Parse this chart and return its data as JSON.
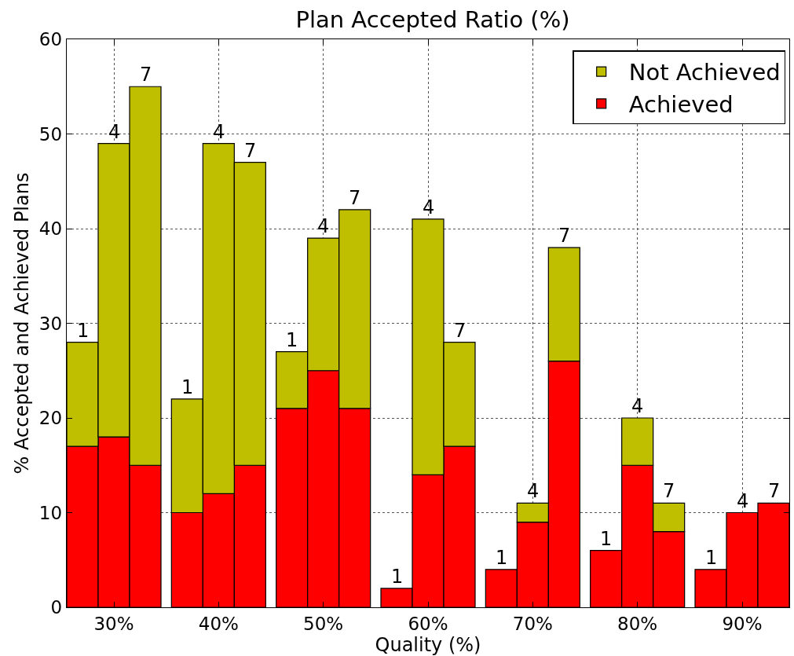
{
  "chart_data": {
    "type": "bar",
    "title": "Plan Accepted Ratio (%)",
    "xlabel": "Quality (%)",
    "ylabel": "% Accepted and Achieved Plans",
    "stacked": true,
    "x": [
      27,
      30,
      33,
      37,
      40,
      43,
      47,
      50,
      53,
      57,
      60,
      63,
      67,
      70,
      73,
      77,
      80,
      83,
      87,
      90,
      93
    ],
    "series": [
      {
        "name": "Achieved",
        "color": "#ff0000",
        "values": [
          17,
          18,
          15,
          10,
          12,
          15,
          21,
          25,
          21,
          2,
          14,
          17,
          4,
          9,
          26,
          6,
          15,
          8,
          4,
          10,
          11
        ]
      },
      {
        "name": "Not Achieved",
        "color": "#bfbf00",
        "values": [
          11,
          31,
          40,
          12,
          37,
          32,
          6,
          14,
          21,
          null,
          27,
          11,
          null,
          2,
          12,
          null,
          5,
          3,
          null,
          null,
          null
        ]
      }
    ],
    "xlim": [
      25.5,
      94.5
    ],
    "xticks": [
      {
        "value": 30,
        "label": "30%"
      },
      {
        "value": 40,
        "label": "40%"
      },
      {
        "value": 50,
        "label": "50%"
      },
      {
        "value": 60,
        "label": "60%"
      },
      {
        "value": 70,
        "label": "70%"
      },
      {
        "value": 80,
        "label": "80%"
      },
      {
        "value": 90,
        "label": "90%"
      }
    ],
    "ylim": [
      0,
      60
    ],
    "yticks": [
      0,
      10,
      20,
      30,
      40,
      50,
      60
    ],
    "grid": true,
    "legend": "top right",
    "annotations": [
      {
        "text": "1",
        "x": 27,
        "y": 28
      },
      {
        "text": "4",
        "x": 30,
        "y": 49
      },
      {
        "text": "7",
        "x": 33,
        "y": 55
      },
      {
        "text": "1",
        "x": 37,
        "y": 22
      },
      {
        "text": "4",
        "x": 40,
        "y": 49
      },
      {
        "text": "7",
        "x": 43,
        "y": 47
      },
      {
        "text": "1",
        "x": 47,
        "y": 27
      },
      {
        "text": "4",
        "x": 50,
        "y": 39
      },
      {
        "text": "7",
        "x": 53,
        "y": 42
      },
      {
        "text": "1",
        "x": 57,
        "y": 2
      },
      {
        "text": "4",
        "x": 60,
        "y": 41
      },
      {
        "text": "7",
        "x": 63,
        "y": 28
      },
      {
        "text": "1",
        "x": 67,
        "y": 4
      },
      {
        "text": "4",
        "x": 70,
        "y": 11
      },
      {
        "text": "7",
        "x": 73,
        "y": 38
      },
      {
        "text": "1",
        "x": 77,
        "y": 6
      },
      {
        "text": "4",
        "x": 80,
        "y": 20
      },
      {
        "text": "7",
        "x": 83,
        "y": 11
      },
      {
        "text": "1",
        "x": 87,
        "y": 4
      },
      {
        "text": "4",
        "x": 90,
        "y": 10
      },
      {
        "text": "7",
        "x": 93,
        "y": 11
      }
    ]
  }
}
